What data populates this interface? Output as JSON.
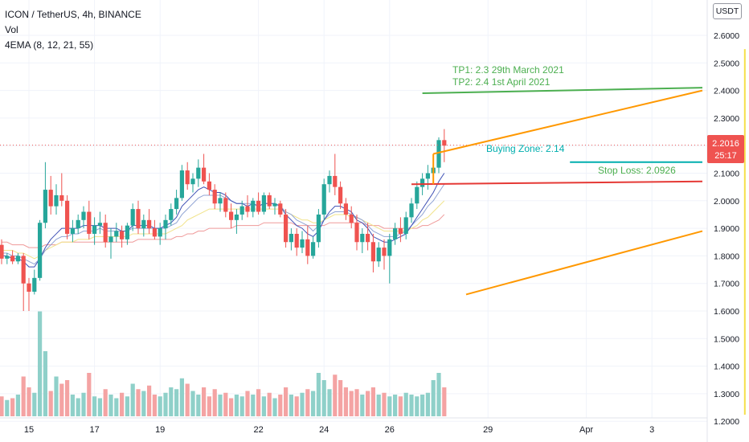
{
  "legend": {
    "symbol": "ICON / TetherUS, 4h, BINANCE",
    "volume": "Vol",
    "ema": "4EMA (8, 12, 21, 55)"
  },
  "currency_button": "USDT",
  "price_tag": {
    "value": "2.2016",
    "countdown": "25:17"
  },
  "annotations": {
    "tp1": "TP1: 2.3 29th March 2021",
    "tp2": "TP2: 2.4 1st April 2021",
    "buying_zone": "Buying Zone: 2.14",
    "stop_loss": "Stop Loss: 2.0926"
  },
  "colors": {
    "up": "#26a69a",
    "down": "#ef5350",
    "vol_up": "#8fd0c9",
    "vol_down": "#f4a3a3",
    "tp": "#4caf50",
    "buy": "#00aeae",
    "stop": "#e53935",
    "channel": "#ff9800",
    "vertical": "#f5e04a",
    "ema8": "#3f51b5",
    "ema12": "#90a4d4",
    "ema21": "#f1e38a",
    "ema55": "#ef9a9a"
  },
  "chart_data": {
    "type": "candlestick",
    "title": "ICON / TetherUS, 4h, BINANCE",
    "y_axis": {
      "range": [
        1.2,
        2.7
      ],
      "ticks": [
        "2.6000",
        "2.5000",
        "2.4000",
        "2.3000",
        "2.2000",
        "2.1000",
        "2.0000",
        "1.9000",
        "1.8000",
        "1.7000",
        "1.6000",
        "1.5000",
        "1.4000",
        "1.3000",
        "1.2000"
      ]
    },
    "x_axis": {
      "index_range": [
        0,
        280
      ],
      "ticks": [
        {
          "label": "15",
          "i": 5
        },
        {
          "label": "17",
          "i": 17
        },
        {
          "label": "19",
          "i": 29
        },
        {
          "label": "22",
          "i": 47
        },
        {
          "label": "24",
          "i": 59
        },
        {
          "label": "26",
          "i": 71
        },
        {
          "label": "29",
          "i": 89
        },
        {
          "label": "Apr",
          "i": 107
        },
        {
          "label": "3",
          "i": 119
        }
      ]
    },
    "candles": [
      [
        1.84,
        1.86,
        1.77,
        1.79
      ],
      [
        1.79,
        1.81,
        1.77,
        1.8
      ],
      [
        1.8,
        1.82,
        1.77,
        1.78
      ],
      [
        1.78,
        1.81,
        1.77,
        1.8
      ],
      [
        1.8,
        1.81,
        1.6,
        1.7
      ],
      [
        1.7,
        1.72,
        1.6,
        1.67
      ],
      [
        1.67,
        1.75,
        1.66,
        1.72
      ],
      [
        1.72,
        1.93,
        1.71,
        1.92
      ],
      [
        1.92,
        2.14,
        1.9,
        2.04
      ],
      [
        2.04,
        2.09,
        1.95,
        1.98
      ],
      [
        1.98,
        2.06,
        1.95,
        2.02
      ],
      [
        2.02,
        2.1,
        1.98,
        2.0
      ],
      [
        2.0,
        2.02,
        1.86,
        1.88
      ],
      [
        1.88,
        1.93,
        1.85,
        1.9
      ],
      [
        1.9,
        1.95,
        1.88,
        1.93
      ],
      [
        1.93,
        1.98,
        1.9,
        1.96
      ],
      [
        1.96,
        2.0,
        1.86,
        1.88
      ],
      [
        1.88,
        1.94,
        1.84,
        1.91
      ],
      [
        1.91,
        1.96,
        1.88,
        1.92
      ],
      [
        1.92,
        1.95,
        1.83,
        1.85
      ],
      [
        1.85,
        1.9,
        1.79,
        1.87
      ],
      [
        1.87,
        1.92,
        1.85,
        1.89
      ],
      [
        1.89,
        1.91,
        1.83,
        1.86
      ],
      [
        1.86,
        1.92,
        1.84,
        1.91
      ],
      [
        1.91,
        1.99,
        1.89,
        1.97
      ],
      [
        1.97,
        2.0,
        1.88,
        1.9
      ],
      [
        1.9,
        1.95,
        1.87,
        1.93
      ],
      [
        1.93,
        1.97,
        1.88,
        1.9
      ],
      [
        1.9,
        1.93,
        1.86,
        1.87
      ],
      [
        1.87,
        1.92,
        1.84,
        1.9
      ],
      [
        1.9,
        1.95,
        1.86,
        1.93
      ],
      [
        1.93,
        1.99,
        1.91,
        1.97
      ],
      [
        1.97,
        2.04,
        1.95,
        2.01
      ],
      [
        2.01,
        2.13,
        2.0,
        2.11
      ],
      [
        2.11,
        2.14,
        2.04,
        2.06
      ],
      [
        2.06,
        2.1,
        2.03,
        2.08
      ],
      [
        2.08,
        2.15,
        2.05,
        2.12
      ],
      [
        2.12,
        2.17,
        2.06,
        2.07
      ],
      [
        2.07,
        2.1,
        2.02,
        2.04
      ],
      [
        2.04,
        2.06,
        1.97,
        1.99
      ],
      [
        1.99,
        2.03,
        1.96,
        2.01
      ],
      [
        2.01,
        2.03,
        1.94,
        1.96
      ],
      [
        1.96,
        1.99,
        1.9,
        1.93
      ],
      [
        1.93,
        1.97,
        1.88,
        1.95
      ],
      [
        1.95,
        2.0,
        1.93,
        1.98
      ],
      [
        1.98,
        2.02,
        1.94,
        1.96
      ],
      [
        1.96,
        2.01,
        1.94,
        2.0
      ],
      [
        2.0,
        2.03,
        1.95,
        1.96
      ],
      [
        1.96,
        2.03,
        1.95,
        2.02
      ],
      [
        2.02,
        2.03,
        1.97,
        1.98
      ],
      [
        1.98,
        2.01,
        1.95,
        1.99
      ],
      [
        1.99,
        2.0,
        1.94,
        1.95
      ],
      [
        1.95,
        1.97,
        1.83,
        1.85
      ],
      [
        1.85,
        1.9,
        1.82,
        1.88
      ],
      [
        1.88,
        1.9,
        1.8,
        1.83
      ],
      [
        1.83,
        1.89,
        1.81,
        1.86
      ],
      [
        1.86,
        1.91,
        1.77,
        1.8
      ],
      [
        1.8,
        1.87,
        1.79,
        1.85
      ],
      [
        1.85,
        1.97,
        1.83,
        1.95
      ],
      [
        1.95,
        2.08,
        1.93,
        2.06
      ],
      [
        2.06,
        2.11,
        2.03,
        2.09
      ],
      [
        2.09,
        2.17,
        2.02,
        2.05
      ],
      [
        2.05,
        2.07,
        1.97,
        1.99
      ],
      [
        1.99,
        2.01,
        1.93,
        1.95
      ],
      [
        1.95,
        1.98,
        1.9,
        1.92
      ],
      [
        1.92,
        1.95,
        1.82,
        1.85
      ],
      [
        1.85,
        1.9,
        1.81,
        1.88
      ],
      [
        1.88,
        1.92,
        1.82,
        1.85
      ],
      [
        1.85,
        1.88,
        1.74,
        1.78
      ],
      [
        1.78,
        1.85,
        1.76,
        1.83
      ],
      [
        1.83,
        1.86,
        1.75,
        1.8
      ],
      [
        1.8,
        1.88,
        1.7,
        1.86
      ],
      [
        1.86,
        1.92,
        1.84,
        1.9
      ],
      [
        1.9,
        1.94,
        1.85,
        1.88
      ],
      [
        1.88,
        1.96,
        1.86,
        1.94
      ],
      [
        1.94,
        2.01,
        1.92,
        1.99
      ],
      [
        1.99,
        2.07,
        1.97,
        2.05
      ],
      [
        2.05,
        2.1,
        2.02,
        2.08
      ],
      [
        2.08,
        2.13,
        2.04,
        2.1
      ],
      [
        2.1,
        2.15,
        2.06,
        2.12
      ],
      [
        2.12,
        2.23,
        2.1,
        2.22
      ],
      [
        2.22,
        2.26,
        2.14,
        2.2
      ]
    ],
    "volume": [
      0.11,
      0.09,
      0.1,
      0.12,
      0.22,
      0.16,
      0.13,
      0.58,
      0.36,
      0.14,
      0.22,
      0.18,
      0.2,
      0.12,
      0.1,
      0.13,
      0.24,
      0.11,
      0.1,
      0.15,
      0.12,
      0.1,
      0.13,
      0.11,
      0.18,
      0.15,
      0.14,
      0.17,
      0.12,
      0.11,
      0.13,
      0.16,
      0.15,
      0.21,
      0.18,
      0.14,
      0.12,
      0.16,
      0.11,
      0.15,
      0.12,
      0.13,
      0.1,
      0.12,
      0.11,
      0.14,
      0.12,
      0.15,
      0.11,
      0.13,
      0.1,
      0.12,
      0.16,
      0.12,
      0.11,
      0.13,
      0.15,
      0.14,
      0.24,
      0.2,
      0.15,
      0.23,
      0.2,
      0.16,
      0.14,
      0.15,
      0.12,
      0.14,
      0.16,
      0.12,
      0.13,
      0.11,
      0.12,
      0.11,
      0.13,
      0.12,
      0.11,
      0.12,
      0.13,
      0.2,
      0.24,
      0.16
    ],
    "volume_axis_max": 0.6,
    "ema8": [
      1.8,
      1.8,
      1.79,
      1.79,
      1.78,
      1.76,
      1.76,
      1.79,
      1.83,
      1.86,
      1.88,
      1.9,
      1.9,
      1.9,
      1.9,
      1.91,
      1.91,
      1.91,
      1.91,
      1.9,
      1.9,
      1.9,
      1.89,
      1.89,
      1.91,
      1.91,
      1.91,
      1.91,
      1.9,
      1.9,
      1.91,
      1.92,
      1.94,
      1.98,
      2.0,
      2.02,
      2.04,
      2.05,
      2.04,
      2.03,
      2.03,
      2.02,
      2.0,
      1.99,
      1.99,
      1.98,
      1.99,
      1.98,
      1.99,
      1.99,
      1.99,
      1.98,
      1.95,
      1.93,
      1.91,
      1.9,
      1.88,
      1.87,
      1.89,
      1.93,
      1.96,
      1.98,
      1.98,
      1.97,
      1.96,
      1.93,
      1.92,
      1.9,
      1.87,
      1.86,
      1.85,
      1.85,
      1.86,
      1.87,
      1.88,
      1.91,
      1.94,
      1.97,
      2.0,
      2.03,
      2.07,
      2.1
    ],
    "ema12": [
      1.81,
      1.81,
      1.8,
      1.8,
      1.79,
      1.78,
      1.77,
      1.79,
      1.82,
      1.84,
      1.86,
      1.87,
      1.87,
      1.88,
      1.88,
      1.89,
      1.89,
      1.89,
      1.9,
      1.89,
      1.89,
      1.89,
      1.89,
      1.89,
      1.9,
      1.9,
      1.9,
      1.9,
      1.9,
      1.9,
      1.9,
      1.91,
      1.92,
      1.95,
      1.97,
      1.99,
      2.01,
      2.02,
      2.02,
      2.02,
      2.02,
      2.01,
      2.0,
      1.99,
      1.99,
      1.99,
      1.99,
      1.98,
      1.99,
      1.99,
      1.99,
      1.98,
      1.96,
      1.95,
      1.93,
      1.92,
      1.91,
      1.89,
      1.91,
      1.93,
      1.95,
      1.96,
      1.96,
      1.96,
      1.95,
      1.94,
      1.93,
      1.91,
      1.89,
      1.88,
      1.87,
      1.87,
      1.87,
      1.88,
      1.89,
      1.91,
      1.93,
      1.95,
      1.98,
      2.0,
      2.03,
      2.06
    ],
    "ema21": [
      1.82,
      1.82,
      1.82,
      1.81,
      1.81,
      1.8,
      1.79,
      1.8,
      1.82,
      1.83,
      1.84,
      1.85,
      1.85,
      1.85,
      1.86,
      1.86,
      1.86,
      1.87,
      1.87,
      1.87,
      1.87,
      1.87,
      1.87,
      1.87,
      1.88,
      1.88,
      1.88,
      1.88,
      1.88,
      1.88,
      1.88,
      1.89,
      1.9,
      1.91,
      1.93,
      1.94,
      1.95,
      1.96,
      1.97,
      1.97,
      1.97,
      1.97,
      1.97,
      1.97,
      1.97,
      1.97,
      1.97,
      1.97,
      1.97,
      1.97,
      1.97,
      1.97,
      1.96,
      1.95,
      1.94,
      1.93,
      1.93,
      1.92,
      1.92,
      1.93,
      1.94,
      1.95,
      1.95,
      1.95,
      1.94,
      1.94,
      1.93,
      1.92,
      1.91,
      1.9,
      1.89,
      1.89,
      1.89,
      1.89,
      1.89,
      1.9,
      1.91,
      1.93,
      1.94,
      1.96,
      1.98,
      2.0
    ],
    "ema55": [
      1.85,
      1.85,
      1.84,
      1.84,
      1.84,
      1.83,
      1.83,
      1.83,
      1.84,
      1.84,
      1.84,
      1.85,
      1.85,
      1.85,
      1.85,
      1.85,
      1.85,
      1.85,
      1.85,
      1.85,
      1.85,
      1.85,
      1.85,
      1.85,
      1.85,
      1.86,
      1.86,
      1.86,
      1.86,
      1.86,
      1.86,
      1.86,
      1.87,
      1.87,
      1.88,
      1.88,
      1.89,
      1.89,
      1.9,
      1.9,
      1.9,
      1.9,
      1.9,
      1.91,
      1.91,
      1.91,
      1.91,
      1.91,
      1.92,
      1.92,
      1.92,
      1.92,
      1.92,
      1.92,
      1.91,
      1.91,
      1.91,
      1.91,
      1.91,
      1.91,
      1.92,
      1.92,
      1.92,
      1.92,
      1.92,
      1.92,
      1.92,
      1.91,
      1.91,
      1.91,
      1.9,
      1.9,
      1.9,
      1.9,
      1.9,
      1.9,
      1.9,
      1.91,
      1.91,
      1.92,
      1.93,
      1.95
    ],
    "last_price": 2.2016,
    "drawings": {
      "tp_line": {
        "from": [
          77,
          2.39
        ],
        "to": [
          284,
          2.41
        ]
      },
      "stop_line": {
        "from": [
          75,
          2.06
        ],
        "to": [
          280,
          2.07
        ]
      },
      "buy_line": {
        "from": [
          104,
          2.14
        ],
        "to": [
          138,
          2.14
        ]
      },
      "channel_upper": {
        "from": [
          79,
          2.17
        ],
        "to": [
          136,
          2.4
        ]
      },
      "channel_lower": {
        "from": [
          85,
          1.66
        ],
        "to": [
          136,
          1.89
        ]
      },
      "vertical_line_price_top": 2.55
    }
  }
}
